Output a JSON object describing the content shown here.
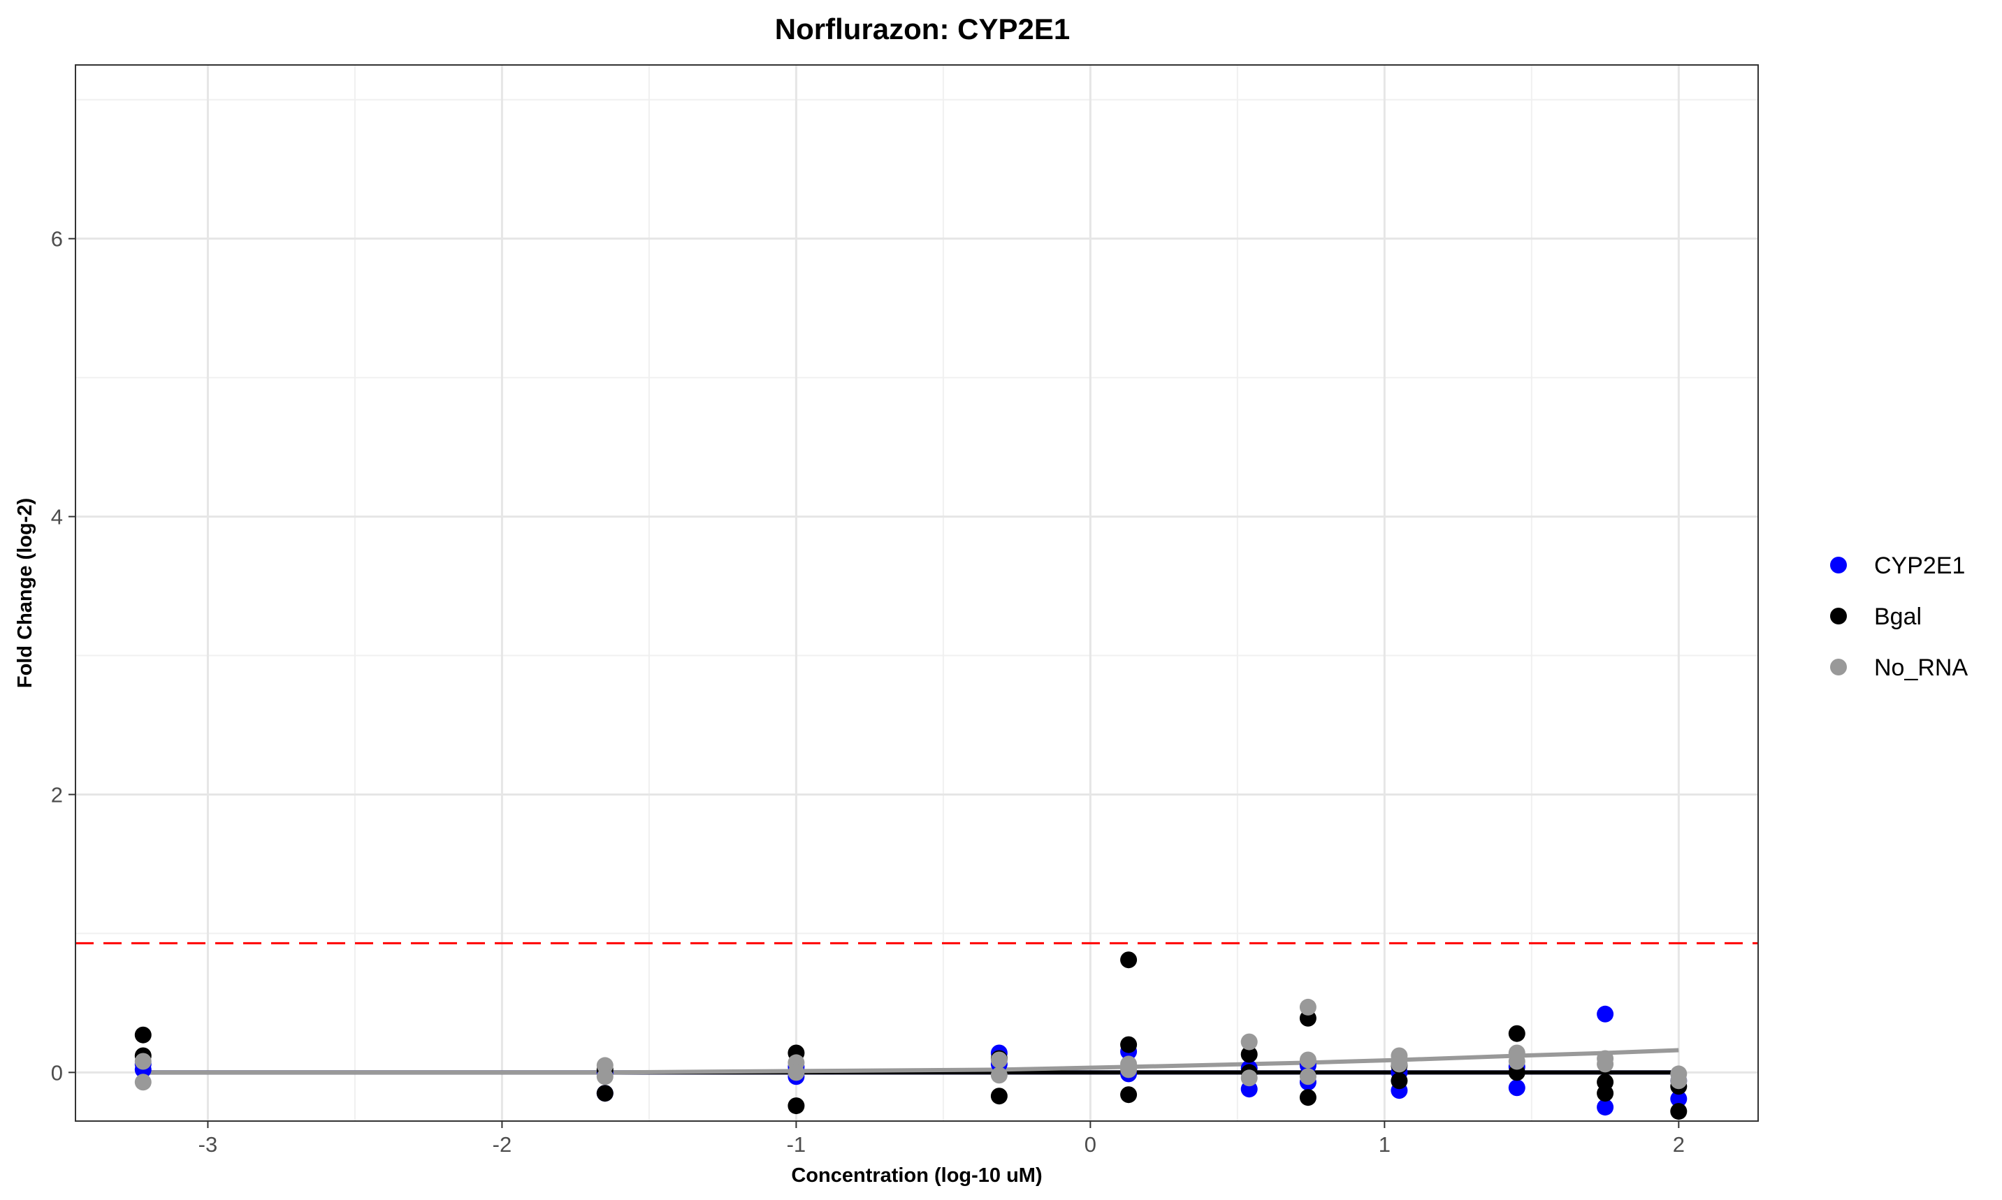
{
  "chart_data": {
    "type": "scatter",
    "title": "Norflurazon: CYP2E1",
    "xlabel": "Concentration (log-10 uM)",
    "ylabel": "Fold Change (log-2)",
    "xlim": [
      -3.45,
      2.27
    ],
    "ylim": [
      -0.35,
      7.25
    ],
    "x_ticks": [
      -3,
      -2,
      -1,
      0,
      1,
      2
    ],
    "x_tick_labels": [
      "-3",
      "-2",
      "-1",
      "0",
      "1",
      "2"
    ],
    "y_ticks": [
      0,
      2,
      4,
      6
    ],
    "y_tick_labels": [
      "0",
      "2",
      "4",
      "6"
    ],
    "grid": true,
    "legend_position": "right",
    "threshold": {
      "value": 0.93,
      "color": "#ff0000",
      "style": "dashed"
    },
    "series": [
      {
        "name": "CYP2E1",
        "color": "#0000ff",
        "points": [
          {
            "x": -3.22,
            "y": 0.02
          },
          {
            "x": -3.22,
            "y": 0.06
          },
          {
            "x": -1.65,
            "y": -0.15
          },
          {
            "x": -1.65,
            "y": 0.0
          },
          {
            "x": -1.0,
            "y": -0.03
          },
          {
            "x": -1.0,
            "y": 0.04
          },
          {
            "x": -0.31,
            "y": 0.14
          },
          {
            "x": -0.31,
            "y": 0.06
          },
          {
            "x": 0.13,
            "y": 0.15
          },
          {
            "x": 0.13,
            "y": -0.01
          },
          {
            "x": 0.54,
            "y": -0.12
          },
          {
            "x": 0.54,
            "y": 0.03
          },
          {
            "x": 0.74,
            "y": -0.07
          },
          {
            "x": 0.74,
            "y": 0.05
          },
          {
            "x": 1.05,
            "y": -0.13
          },
          {
            "x": 1.05,
            "y": 0.0
          },
          {
            "x": 1.45,
            "y": -0.11
          },
          {
            "x": 1.45,
            "y": 0.04
          },
          {
            "x": 1.75,
            "y": 0.42
          },
          {
            "x": 1.75,
            "y": -0.25
          },
          {
            "x": 2.0,
            "y": -0.19
          },
          {
            "x": 2.0,
            "y": -0.06
          }
        ],
        "fit": [
          {
            "x": -3.22,
            "y": 0.0
          },
          {
            "x": 2.0,
            "y": 0.0
          }
        ]
      },
      {
        "name": "Bgal",
        "color": "#000000",
        "points": [
          {
            "x": -3.22,
            "y": 0.27
          },
          {
            "x": -3.22,
            "y": 0.12
          },
          {
            "x": -1.65,
            "y": -0.15
          },
          {
            "x": -1.65,
            "y": 0.02
          },
          {
            "x": -1.0,
            "y": -0.24
          },
          {
            "x": -1.0,
            "y": 0.14
          },
          {
            "x": -0.31,
            "y": -0.17
          },
          {
            "x": -0.31,
            "y": 0.1
          },
          {
            "x": 0.13,
            "y": 0.81
          },
          {
            "x": 0.13,
            "y": 0.2
          },
          {
            "x": 0.13,
            "y": -0.16
          },
          {
            "x": 0.54,
            "y": 0.13
          },
          {
            "x": 0.54,
            "y": 0.0
          },
          {
            "x": 0.74,
            "y": 0.39
          },
          {
            "x": 0.74,
            "y": -0.18
          },
          {
            "x": 1.05,
            "y": -0.06
          },
          {
            "x": 1.05,
            "y": 0.05
          },
          {
            "x": 1.45,
            "y": 0.28
          },
          {
            "x": 1.45,
            "y": 0.0
          },
          {
            "x": 1.75,
            "y": -0.15
          },
          {
            "x": 1.75,
            "y": -0.07
          },
          {
            "x": 2.0,
            "y": -0.28
          },
          {
            "x": 2.0,
            "y": -0.1
          }
        ],
        "fit": [
          {
            "x": -3.22,
            "y": 0.0
          },
          {
            "x": 2.0,
            "y": 0.0
          }
        ]
      },
      {
        "name": "No_RNA",
        "color": "#999999",
        "points": [
          {
            "x": -3.22,
            "y": -0.07
          },
          {
            "x": -3.22,
            "y": 0.08
          },
          {
            "x": -1.65,
            "y": 0.05
          },
          {
            "x": -1.65,
            "y": -0.03
          },
          {
            "x": -1.0,
            "y": 0.07
          },
          {
            "x": -1.0,
            "y": 0.0
          },
          {
            "x": -0.31,
            "y": 0.09
          },
          {
            "x": -0.31,
            "y": -0.02
          },
          {
            "x": 0.13,
            "y": 0.06
          },
          {
            "x": 0.13,
            "y": 0.02
          },
          {
            "x": 0.54,
            "y": 0.22
          },
          {
            "x": 0.54,
            "y": -0.04
          },
          {
            "x": 0.74,
            "y": 0.47
          },
          {
            "x": 0.74,
            "y": 0.09
          },
          {
            "x": 0.74,
            "y": -0.03
          },
          {
            "x": 1.05,
            "y": 0.12
          },
          {
            "x": 1.05,
            "y": 0.06
          },
          {
            "x": 1.45,
            "y": 0.14
          },
          {
            "x": 1.45,
            "y": 0.08
          },
          {
            "x": 1.75,
            "y": 0.1
          },
          {
            "x": 1.75,
            "y": 0.06
          },
          {
            "x": 2.0,
            "y": -0.01
          },
          {
            "x": 2.0,
            "y": -0.06
          }
        ],
        "fit": [
          {
            "x": -3.22,
            "y": 0.0
          },
          {
            "x": -1.65,
            "y": 0.0
          },
          {
            "x": -1.0,
            "y": 0.01
          },
          {
            "x": -0.31,
            "y": 0.02
          },
          {
            "x": 0.13,
            "y": 0.04
          },
          {
            "x": 0.54,
            "y": 0.06
          },
          {
            "x": 0.74,
            "y": 0.07
          },
          {
            "x": 1.05,
            "y": 0.09
          },
          {
            "x": 1.45,
            "y": 0.12
          },
          {
            "x": 1.75,
            "y": 0.14
          },
          {
            "x": 2.0,
            "y": 0.16
          }
        ]
      }
    ]
  }
}
